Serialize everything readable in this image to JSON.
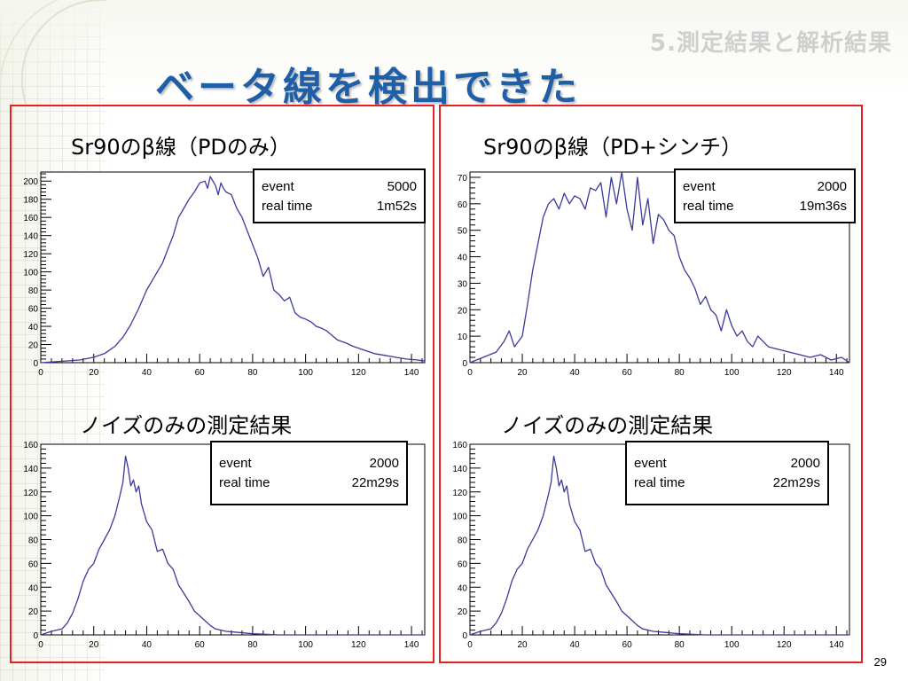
{
  "slide": {
    "section": "5.測定結果と解析結果",
    "title": "ベータ線を検出できた",
    "page_number": "29"
  },
  "panels": {
    "top_left": {
      "caption": "Sr90のβ線（PDのみ）",
      "stats_event_label": "event",
      "stats_event_value": "5000",
      "stats_time_label": "real time",
      "stats_time_value": "1m52s"
    },
    "top_right": {
      "caption": "Sr90のβ線（PD+シンチ）",
      "stats_event_label": "event",
      "stats_event_value": "2000",
      "stats_time_label": "real time",
      "stats_time_value": "19m36s"
    },
    "bottom_left": {
      "caption": "ノイズのみの測定結果",
      "stats_event_label": "event",
      "stats_event_value": "2000",
      "stats_time_label": "real time",
      "stats_time_value": "22m29s"
    },
    "bottom_right": {
      "caption": "ノイズのみの測定結果",
      "stats_event_label": "event",
      "stats_event_value": "2000",
      "stats_time_label": "real time",
      "stats_time_value": "22m29s"
    }
  },
  "colors": {
    "frame": "#e52121",
    "line": "#3a3a9a",
    "title": "#1f5fa8"
  },
  "chart_data": [
    {
      "id": "top_left",
      "type": "line",
      "title": "Sr90のβ線（PDのみ）",
      "xlim": [
        0,
        145
      ],
      "ylim": [
        0,
        210
      ],
      "xticks": [
        0,
        20,
        40,
        60,
        80,
        100,
        120,
        140
      ],
      "yticks": [
        0,
        20,
        40,
        60,
        80,
        100,
        120,
        140,
        160,
        180,
        200
      ],
      "x": [
        0,
        5,
        10,
        15,
        20,
        24,
        28,
        31,
        34,
        37,
        40,
        43,
        46,
        48,
        50,
        52,
        54,
        56,
        58,
        60,
        62,
        63,
        64,
        65,
        66,
        67,
        68,
        69,
        70,
        72,
        74,
        76,
        78,
        80,
        82,
        84,
        86,
        88,
        90,
        92,
        94,
        96,
        98,
        100,
        102,
        104,
        106,
        108,
        110,
        112,
        115,
        118,
        122,
        126,
        130,
        134,
        138,
        142,
        145
      ],
      "y": [
        0,
        1,
        2,
        3,
        6,
        10,
        18,
        28,
        42,
        60,
        80,
        95,
        110,
        125,
        140,
        160,
        170,
        180,
        188,
        198,
        200,
        192,
        205,
        200,
        195,
        185,
        198,
        192,
        188,
        185,
        170,
        160,
        145,
        130,
        115,
        95,
        105,
        80,
        75,
        68,
        72,
        55,
        50,
        48,
        45,
        40,
        38,
        35,
        30,
        25,
        22,
        18,
        14,
        10,
        8,
        6,
        4,
        3,
        2
      ]
    },
    {
      "id": "top_right",
      "type": "line",
      "title": "Sr90のβ線（PD+シンチ）",
      "xlim": [
        0,
        145
      ],
      "ylim": [
        0,
        72
      ],
      "xticks": [
        0,
        20,
        40,
        60,
        80,
        100,
        120,
        140
      ],
      "yticks": [
        0,
        10,
        20,
        30,
        40,
        50,
        60,
        70
      ],
      "x": [
        0,
        5,
        10,
        13,
        15,
        17,
        20,
        22,
        24,
        26,
        28,
        30,
        32,
        34,
        36,
        38,
        40,
        42,
        44,
        46,
        48,
        50,
        52,
        54,
        56,
        58,
        60,
        62,
        64,
        66,
        68,
        70,
        72,
        74,
        76,
        78,
        80,
        82,
        84,
        86,
        88,
        90,
        92,
        94,
        96,
        98,
        100,
        102,
        104,
        106,
        108,
        110,
        114,
        118,
        122,
        126,
        130,
        134,
        138,
        142,
        145
      ],
      "y": [
        0,
        2,
        4,
        8,
        12,
        6,
        10,
        22,
        35,
        45,
        55,
        60,
        62,
        58,
        64,
        60,
        63,
        62,
        58,
        66,
        65,
        68,
        55,
        70,
        60,
        72,
        58,
        50,
        70,
        52,
        62,
        45,
        56,
        54,
        50,
        48,
        40,
        35,
        32,
        28,
        22,
        25,
        20,
        18,
        12,
        20,
        14,
        10,
        12,
        8,
        6,
        10,
        6,
        5,
        4,
        3,
        2,
        3,
        1,
        2,
        0
      ]
    },
    {
      "id": "bottom_left",
      "type": "line",
      "title": "ノイズのみの測定結果",
      "xlim": [
        0,
        145
      ],
      "ylim": [
        0,
        160
      ],
      "xticks": [
        0,
        20,
        40,
        60,
        80,
        100,
        120,
        140
      ],
      "yticks": [
        0,
        20,
        40,
        60,
        80,
        100,
        120,
        140,
        160
      ],
      "x": [
        0,
        4,
        8,
        10,
        12,
        14,
        16,
        18,
        20,
        22,
        24,
        26,
        28,
        30,
        31,
        32,
        33,
        34,
        35,
        36,
        37,
        38,
        40,
        42,
        44,
        46,
        48,
        50,
        52,
        54,
        56,
        58,
        60,
        62,
        64,
        66,
        70,
        75,
        80,
        90,
        100,
        120,
        145
      ],
      "y": [
        0,
        3,
        5,
        10,
        18,
        30,
        45,
        55,
        60,
        72,
        80,
        88,
        100,
        118,
        128,
        150,
        140,
        125,
        130,
        120,
        125,
        110,
        95,
        88,
        70,
        72,
        60,
        55,
        42,
        35,
        28,
        20,
        16,
        12,
        8,
        5,
        3,
        2,
        1,
        0,
        0,
        0,
        0
      ]
    },
    {
      "id": "bottom_right",
      "type": "line",
      "title": "ノイズのみの測定結果",
      "xlim": [
        0,
        145
      ],
      "ylim": [
        0,
        160
      ],
      "xticks": [
        0,
        20,
        40,
        60,
        80,
        100,
        120,
        140
      ],
      "yticks": [
        0,
        20,
        40,
        60,
        80,
        100,
        120,
        140,
        160
      ],
      "x": [
        0,
        4,
        8,
        10,
        12,
        14,
        16,
        18,
        20,
        22,
        24,
        26,
        28,
        30,
        31,
        32,
        33,
        34,
        35,
        36,
        37,
        38,
        40,
        42,
        44,
        46,
        48,
        50,
        52,
        54,
        56,
        58,
        60,
        62,
        64,
        66,
        70,
        75,
        80,
        90,
        100,
        120,
        145
      ],
      "y": [
        0,
        3,
        5,
        10,
        18,
        30,
        45,
        55,
        60,
        72,
        80,
        88,
        100,
        118,
        128,
        150,
        140,
        125,
        130,
        120,
        125,
        110,
        95,
        88,
        70,
        72,
        60,
        55,
        42,
        35,
        28,
        20,
        16,
        12,
        8,
        5,
        3,
        2,
        1,
        0,
        0,
        0,
        0
      ]
    }
  ]
}
